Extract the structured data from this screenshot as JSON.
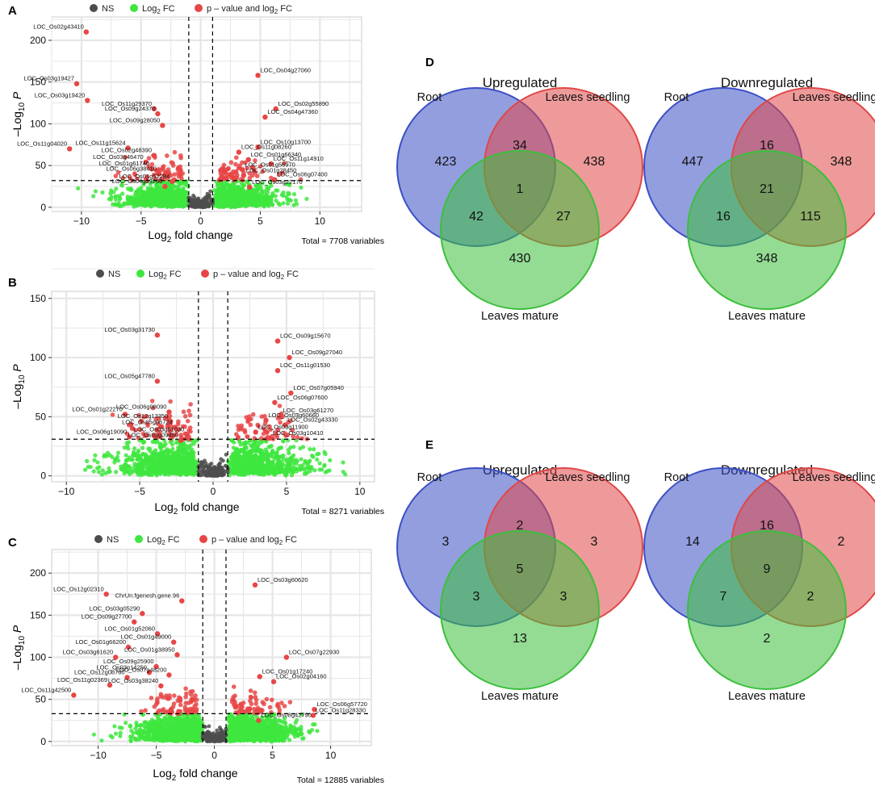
{
  "figure": {
    "volcano_legend": {
      "ns": "NS",
      "log2fc_prefix": "Log",
      "log2fc_sub": "2",
      "log2fc_suffix": " FC",
      "pval_prefix": "p – value and log",
      "pval_sub": "2",
      "pval_suffix": " FC"
    },
    "volcano_axis": {
      "x_prefix": "Log",
      "x_sub": "2",
      "x_suffix": " fold change",
      "y_prefix": "–Log",
      "y_sub": "10",
      "y_italic": "P"
    },
    "colors": {
      "ns": "#4d4d4d",
      "fc": "#3ee63e",
      "sig": "#e74646",
      "root": "#3b4fc4",
      "seedling": "#e04747",
      "mature": "#3cbf3c",
      "panel_bg": "#ffffff",
      "grid": "#e6e6e6"
    }
  },
  "chart_data": [
    {
      "panel": "A",
      "type": "scatter",
      "subtype": "volcano",
      "xlim": [
        -12.5,
        13.5
      ],
      "ylim": [
        -5,
        228
      ],
      "xticks": [
        -10,
        -5,
        0,
        5,
        10
      ],
      "yticks": [
        0,
        50,
        100,
        150,
        200
      ],
      "fc_cutoff": 1,
      "p_cutoff": 32,
      "total": "Total = 7708 variables",
      "labeled_points": [
        {
          "x": -9.6,
          "y": 210,
          "label": "LOC_Os02g43410",
          "side": "left"
        },
        {
          "x": -10.4,
          "y": 148,
          "label": "LOC_Os03g19427",
          "side": "left"
        },
        {
          "x": -9.5,
          "y": 128,
          "label": "LOC_Os03g19420",
          "side": "left"
        },
        {
          "x": -3.9,
          "y": 118,
          "label": "LOC_Os11g29370",
          "side": "left"
        },
        {
          "x": -3.6,
          "y": 112,
          "label": "LOC_Os09g24370",
          "side": "left"
        },
        {
          "x": -3.2,
          "y": 98,
          "label": "LOC_Os09g28050",
          "side": "left"
        },
        {
          "x": -11.0,
          "y": 70,
          "label": "LOC_Os11g04020",
          "side": "left"
        },
        {
          "x": -6.1,
          "y": 71,
          "label": "LOC_Os11g15624",
          "side": "left"
        },
        {
          "x": -3.9,
          "y": 62,
          "label": "LOC_Os02g48390",
          "side": "left"
        },
        {
          "x": -4.6,
          "y": 54,
          "label": "LOC_Os03g46470",
          "side": "left"
        },
        {
          "x": -4.1,
          "y": 46,
          "label": "LOC_Os01g61740",
          "side": "left"
        },
        {
          "x": -3.5,
          "y": 40,
          "label": "LOC_Os06g38410",
          "side": "left"
        },
        {
          "x": -2.4,
          "y": 31,
          "label": "LOC_Os01g52284",
          "side": "left"
        },
        {
          "x": -3.0,
          "y": 25,
          "label": "LOC_Os04g39260",
          "side": "left"
        },
        {
          "x": 4.8,
          "y": 158,
          "label": "LOC_Os04g27060",
          "side": "right"
        },
        {
          "x": 6.3,
          "y": 118,
          "label": "LOC_Os02g55890",
          "side": "right"
        },
        {
          "x": 5.4,
          "y": 108,
          "label": "LOC_Os04g47360",
          "side": "right"
        },
        {
          "x": 4.8,
          "y": 72,
          "label": "LOC_Os10g13700",
          "side": "right"
        },
        {
          "x": 3.2,
          "y": 66,
          "label": "LOC_Os11g08260",
          "side": "right"
        },
        {
          "x": 4.0,
          "y": 57,
          "label": "LOC_Os01g66340",
          "side": "right"
        },
        {
          "x": 5.9,
          "y": 52,
          "label": "LOC_Os11g14910",
          "side": "right"
        },
        {
          "x": 3.5,
          "y": 45,
          "label": "LOC_Os01g56970",
          "side": "right"
        },
        {
          "x": 3.6,
          "y": 38,
          "label": "LOC_Os01g28450",
          "side": "right"
        },
        {
          "x": 6.2,
          "y": 33,
          "label": "LOC_Os06g07400",
          "side": "right"
        },
        {
          "x": 4.1,
          "y": 24,
          "label": "LOC_Os03g22170",
          "side": "right"
        }
      ]
    },
    {
      "panel": "B",
      "type": "scatter",
      "subtype": "volcano",
      "xlim": [
        -11,
        11
      ],
      "ylim": [
        -5,
        156
      ],
      "xticks": [
        -10,
        -5,
        0,
        5,
        10
      ],
      "yticks": [
        0,
        50,
        100,
        150
      ],
      "fc_cutoff": 1,
      "p_cutoff": 31,
      "total": "Total = 8271 variables",
      "labeled_points": [
        {
          "x": -3.8,
          "y": 119,
          "label": "LOC_Os03g31730",
          "side": "left"
        },
        {
          "x": -3.8,
          "y": 80,
          "label": "LOC_Os05g47780",
          "side": "left"
        },
        {
          "x": -3.0,
          "y": 54,
          "label": "LOC_Os06g08090",
          "side": "left"
        },
        {
          "x": -6.0,
          "y": 52,
          "label": "LOC_Os01g22270",
          "side": "left"
        },
        {
          "x": -2.9,
          "y": 46,
          "label": "LOC_Os12g13350",
          "side": "left"
        },
        {
          "x": -2.6,
          "y": 41,
          "label": "LOC_Os05g06724",
          "side": "left"
        },
        {
          "x": -1.8,
          "y": 35,
          "label": "LOC_Os03g51030",
          "side": "left"
        },
        {
          "x": -5.7,
          "y": 33,
          "label": "LOC_Os06g19090",
          "side": "left"
        },
        {
          "x": -2.2,
          "y": 30,
          "label": "LOC_Os03g09450",
          "side": "left"
        },
        {
          "x": 4.4,
          "y": 114,
          "label": "LOC_Os09g15670",
          "side": "right"
        },
        {
          "x": 5.2,
          "y": 100,
          "label": "LOC_Os09g27040",
          "side": "right"
        },
        {
          "x": 4.4,
          "y": 89,
          "label": "LOC_Os11g01530",
          "side": "right"
        },
        {
          "x": 5.3,
          "y": 70,
          "label": "LOC_Os07g05940",
          "side": "right"
        },
        {
          "x": 4.2,
          "y": 62,
          "label": "LOC_Os06g07600",
          "side": "right"
        },
        {
          "x": 4.6,
          "y": 51,
          "label": "LOC_Os03g61270",
          "side": "right"
        },
        {
          "x": 3.6,
          "y": 47,
          "label": "LOC_Os03g60660",
          "side": "right"
        },
        {
          "x": 4.9,
          "y": 43,
          "label": "LOC_Os02g43330",
          "side": "right"
        },
        {
          "x": 2.9,
          "y": 37,
          "label": "LOC_Os03g11900",
          "side": "right"
        },
        {
          "x": 3.9,
          "y": 32,
          "label": "LOC_Os03g10410",
          "side": "right"
        }
      ]
    },
    {
      "panel": "C",
      "type": "scatter",
      "subtype": "volcano",
      "xlim": [
        -14,
        13.5
      ],
      "ylim": [
        -5,
        228
      ],
      "xticks": [
        -10,
        -5,
        0,
        5,
        10
      ],
      "yticks": [
        0,
        50,
        100,
        150,
        200
      ],
      "fc_cutoff": 1,
      "p_cutoff": 33,
      "total": "Total = 12885 variables",
      "labeled_points": [
        {
          "x": 3.5,
          "y": 186,
          "label": "LOC_Os03g60620",
          "side": "right"
        },
        {
          "x": -9.3,
          "y": 175,
          "label": "LOC_Os12g02310",
          "side": "left"
        },
        {
          "x": -2.8,
          "y": 167,
          "label": "ChrUn.fgenesh.gene.96",
          "side": "left"
        },
        {
          "x": -6.2,
          "y": 152,
          "label": "LOC_Os03g05290",
          "side": "left"
        },
        {
          "x": -6.9,
          "y": 142,
          "label": "LOC_Os09g27700",
          "side": "left"
        },
        {
          "x": -4.9,
          "y": 128,
          "label": "LOC_Os01g52060",
          "side": "left"
        },
        {
          "x": -3.5,
          "y": 118,
          "label": "LOC_Os01g49000",
          "side": "left"
        },
        {
          "x": -7.4,
          "y": 112,
          "label": "LOC_Os01g66200",
          "side": "left"
        },
        {
          "x": -3.2,
          "y": 103,
          "label": "LOC_Os01g38950",
          "side": "left"
        },
        {
          "x": -8.5,
          "y": 100,
          "label": "LOC_Os03g61620",
          "side": "left"
        },
        {
          "x": -5.0,
          "y": 89,
          "label": "LOC_Os09g25900",
          "side": "left"
        },
        {
          "x": -5.6,
          "y": 82,
          "label": "LOC_Os03g14250",
          "side": "left"
        },
        {
          "x": -3.9,
          "y": 79,
          "label": "LOC_Os07g48200",
          "side": "left"
        },
        {
          "x": -7.5,
          "y": 76,
          "label": "LOC_Os12g08760",
          "side": "left"
        },
        {
          "x": -9.0,
          "y": 67,
          "label": "LOC_Os11g02369",
          "side": "left"
        },
        {
          "x": -4.6,
          "y": 66,
          "label": "LOC_Os03g38240",
          "side": "left"
        },
        {
          "x": -12.1,
          "y": 55,
          "label": "LOC_Os11g42500",
          "side": "left"
        },
        {
          "x": 6.2,
          "y": 100,
          "label": "LOC_Os07g22930",
          "side": "right"
        },
        {
          "x": 3.9,
          "y": 77,
          "label": "LOC_Os01g17240",
          "side": "right"
        },
        {
          "x": 5.1,
          "y": 71,
          "label": "LOC_Os02g04160",
          "side": "right"
        },
        {
          "x": 8.6,
          "y": 38,
          "label": "LOC_Os06g57720",
          "side": "right"
        },
        {
          "x": 8.5,
          "y": 31,
          "label": "LOC_Os11g28330",
          "side": "right"
        },
        {
          "x": 3.8,
          "y": 25,
          "label": "LOC_Os08g42790",
          "side": "right"
        }
      ]
    },
    {
      "panel": "D",
      "type": "venn",
      "sets": [
        "Root",
        "Leaves seedling",
        "Leaves mature"
      ],
      "diagrams": [
        {
          "title": "Upregulated",
          "only_root": 423,
          "only_seedling": 438,
          "only_mature": 430,
          "root_seedling": 34,
          "root_mature": 42,
          "seedling_mature": 27,
          "all_three": 1
        },
        {
          "title": "Downregulated",
          "only_root": 447,
          "only_seedling": 348,
          "only_mature": 348,
          "root_seedling": 16,
          "root_mature": 16,
          "seedling_mature": 115,
          "all_three": 21
        }
      ]
    },
    {
      "panel": "E",
      "type": "venn",
      "sets": [
        "Root",
        "Leaves seedling",
        "Leaves mature"
      ],
      "diagrams": [
        {
          "title": "Upregulated",
          "only_root": 3,
          "only_seedling": 3,
          "only_mature": 13,
          "root_seedling": 2,
          "root_mature": 3,
          "seedling_mature": 3,
          "all_three": 5
        },
        {
          "title": "Downregulated",
          "only_root": 14,
          "only_seedling": 2,
          "only_mature": 2,
          "root_seedling": 16,
          "root_mature": 7,
          "seedling_mature": 2,
          "all_three": 9
        }
      ]
    }
  ]
}
